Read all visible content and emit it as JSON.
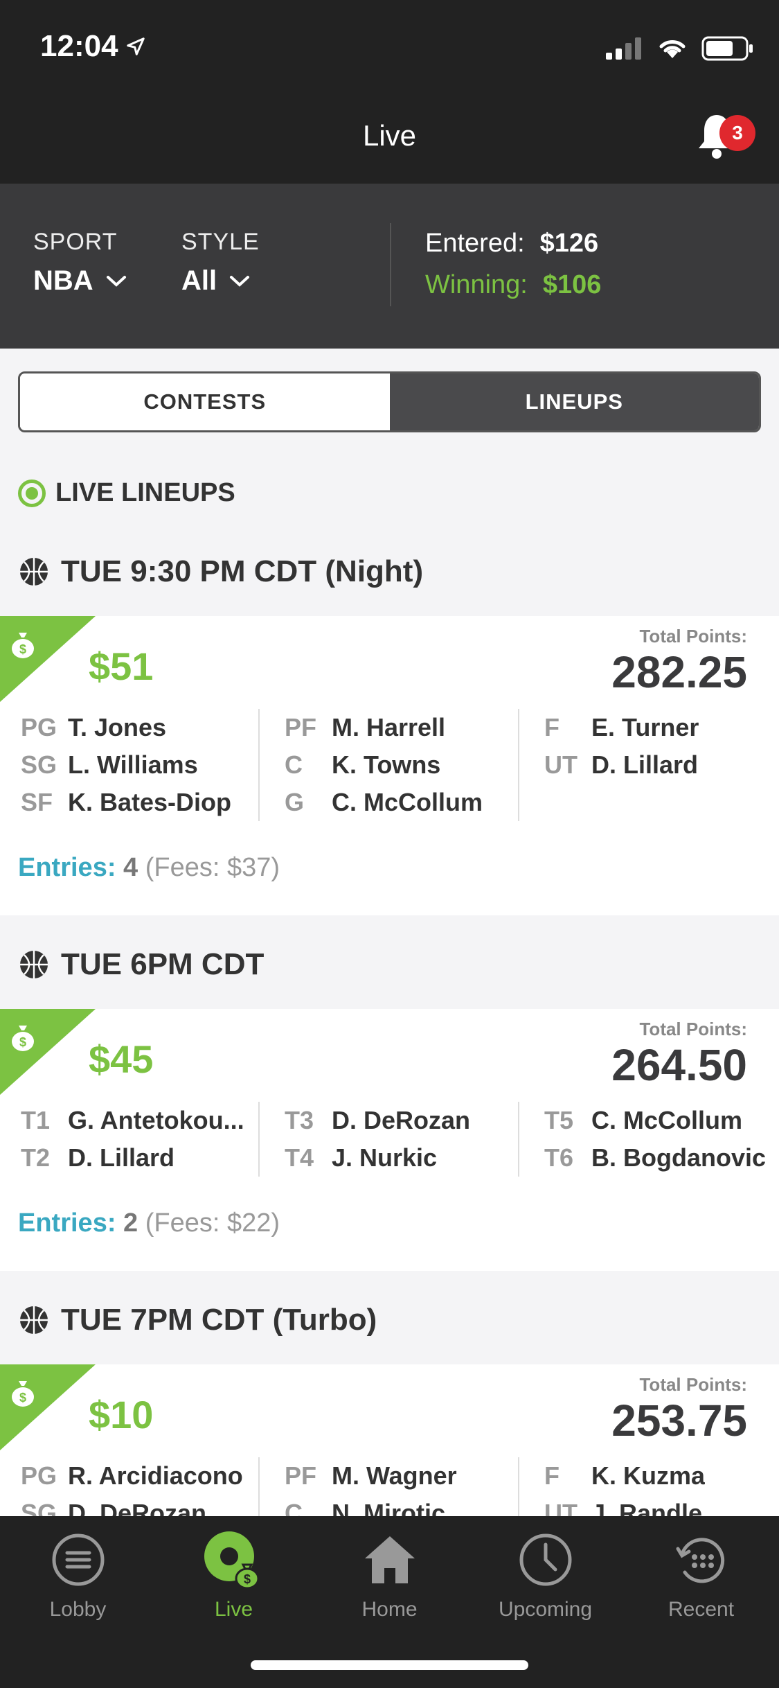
{
  "status": {
    "time": "12:04"
  },
  "nav": {
    "title": "Live",
    "notification_count": "3"
  },
  "filters": {
    "sport_label": "SPORT",
    "sport_value": "NBA",
    "style_label": "STYLE",
    "style_value": "All",
    "entered_label": "Entered:",
    "entered_value": "$126",
    "winning_label": "Winning:",
    "winning_value": "$106"
  },
  "tabs": {
    "contests": "CONTESTS",
    "lineups": "LINEUPS"
  },
  "section_title": "LIVE LINEUPS",
  "groups": [
    {
      "header": "TUE 9:30 PM CDT  (Night)",
      "winnings": "$51",
      "total_label": "Total Points:",
      "total": "282.25",
      "roster": [
        [
          {
            "pos": "PG",
            "name": "T. Jones"
          },
          {
            "pos": "SG",
            "name": "L. Williams"
          },
          {
            "pos": "SF",
            "name": "K. Bates-Diop"
          }
        ],
        [
          {
            "pos": "PF",
            "name": "M. Harrell"
          },
          {
            "pos": "C",
            "name": "K. Towns"
          },
          {
            "pos": "G",
            "name": "C. McCollum"
          }
        ],
        [
          {
            "pos": "F",
            "name": "E. Turner"
          },
          {
            "pos": "UT",
            "name": "D. Lillard"
          }
        ]
      ],
      "entries_label": "Entries:",
      "entries_count": "4",
      "fees": "(Fees: $37)"
    },
    {
      "header": "TUE 6PM CDT",
      "winnings": "$45",
      "total_label": "Total Points:",
      "total": "264.50",
      "roster": [
        [
          {
            "pos": "T1",
            "name": "G. Antetokou..."
          },
          {
            "pos": "T2",
            "name": "D. Lillard"
          }
        ],
        [
          {
            "pos": "T3",
            "name": "D. DeRozan"
          },
          {
            "pos": "T4",
            "name": "J. Nurkic"
          }
        ],
        [
          {
            "pos": "T5",
            "name": "C. McCollum"
          },
          {
            "pos": "T6",
            "name": "B. Bogdanovic"
          }
        ]
      ],
      "entries_label": "Entries:",
      "entries_count": "2",
      "fees": "(Fees: $22)"
    },
    {
      "header": "TUE 7PM CDT  (Turbo)",
      "winnings": "$10",
      "total_label": "Total Points:",
      "total": "253.75",
      "roster": [
        [
          {
            "pos": "PG",
            "name": "R. Arcidiacono"
          },
          {
            "pos": "SG",
            "name": "D. DeRozan"
          }
        ],
        [
          {
            "pos": "PF",
            "name": "M. Wagner"
          },
          {
            "pos": "C",
            "name": "N. Mirotic"
          }
        ],
        [
          {
            "pos": "F",
            "name": "K. Kuzma"
          },
          {
            "pos": "UT",
            "name": "J. Randle"
          }
        ]
      ]
    }
  ],
  "tabbar": {
    "lobby": "Lobby",
    "live": "Live",
    "home": "Home",
    "upcoming": "Upcoming",
    "recent": "Recent"
  },
  "colors": {
    "accent": "#7cc242",
    "entries": "#3aa8c1",
    "badge": "#e0282e"
  }
}
